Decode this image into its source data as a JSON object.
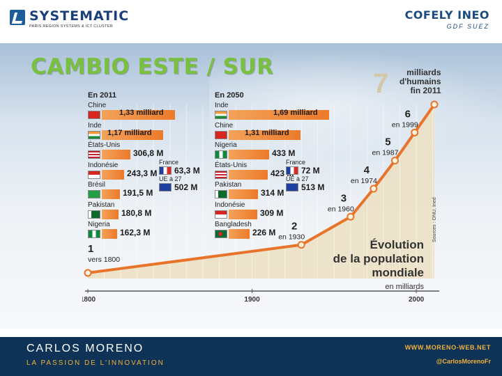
{
  "header": {
    "systematic_name": "SYSTEMATIC",
    "systematic_sub": "PARIS REGION SYSTEMS & ICT CLUSTER",
    "cofely_name": "COFELY INEO",
    "cofely_sub": "GDF SUEZ"
  },
  "title": "CAMBIO ESTE / SUR",
  "left_column": {
    "heading": "En 2011",
    "rows": [
      {
        "name": "Chine",
        "value": "1,33 milliard",
        "flag": "china"
      },
      {
        "name": "Inde",
        "value": "1,17 milliard",
        "flag": "india"
      },
      {
        "name": "États-Unis",
        "value": "306,8 M",
        "flag": "usa"
      },
      {
        "name": "Indonésie",
        "value": "243,3 M",
        "flag": "indonesia"
      },
      {
        "name": "Brésil",
        "value": "191,5 M",
        "flag": "brazil"
      },
      {
        "name": "Pakistan",
        "value": "180,8 M",
        "flag": "pakistan"
      },
      {
        "name": "Nigeria",
        "value": "162,3 M",
        "flag": "nigeria"
      }
    ],
    "france_label": "France",
    "france_value": "63,3 M",
    "ue_label": "UE à 27",
    "ue_value": "502 M"
  },
  "right_column": {
    "heading": "En 2050",
    "rows": [
      {
        "name": "Inde",
        "value": "1,69 milliard",
        "flag": "india"
      },
      {
        "name": "Chine",
        "value": "1,31 milliard",
        "flag": "china"
      },
      {
        "name": "Nigeria",
        "value": "433 M",
        "flag": "nigeria"
      },
      {
        "name": "États-Unis",
        "value": "423 M",
        "flag": "usa"
      },
      {
        "name": "Pakistan",
        "value": "314 M",
        "flag": "pakistan"
      },
      {
        "name": "Indonésie",
        "value": "309 M",
        "flag": "indonesia"
      },
      {
        "name": "Bangladesh",
        "value": "226 M",
        "flag": "bangladesh"
      }
    ],
    "france_label": "France",
    "france_value": "72 M",
    "ue_label": "UE à 27",
    "ue_value": "513 M"
  },
  "curve": {
    "big_number": "7",
    "big_text_1": "milliards",
    "big_text_2": "d'humains",
    "big_text_3": "fin 2011",
    "title_1": "Évolution",
    "title_2": "de la population",
    "title_3": "mondiale",
    "unit": "en milliards",
    "source": "Sources : ONU, Ined",
    "axis_labels": [
      "1800",
      "1900",
      "2000"
    ],
    "points": [
      {
        "year": 1800,
        "value": 1,
        "label": "1",
        "date": "vers 1800"
      },
      {
        "year": 1930,
        "value": 2,
        "label": "2",
        "date": "en 1930"
      },
      {
        "year": 1960,
        "value": 3,
        "label": "3",
        "date": "en 1960"
      },
      {
        "year": 1974,
        "value": 4,
        "label": "4",
        "date": "en 1974"
      },
      {
        "year": 1987,
        "value": 5,
        "label": "5",
        "date": "en 1987"
      },
      {
        "year": 1999,
        "value": 6,
        "label": "6",
        "date": "en 1999"
      },
      {
        "year": 2011,
        "value": 7,
        "label": "",
        "date": ""
      }
    ]
  },
  "footer": {
    "name": "CARLOS MORENO",
    "tagline": "LA PASSION DE L'INNOVATION",
    "website": "WWW.MORENO-WEB.NET",
    "twitter": "@CarlosMorenoFr"
  },
  "colors": {
    "title": "#79c041",
    "bar": "#ec7a2a",
    "curve": "#e8732a",
    "footer": "#0e3357",
    "footer_accent": "#f2b03c"
  }
}
